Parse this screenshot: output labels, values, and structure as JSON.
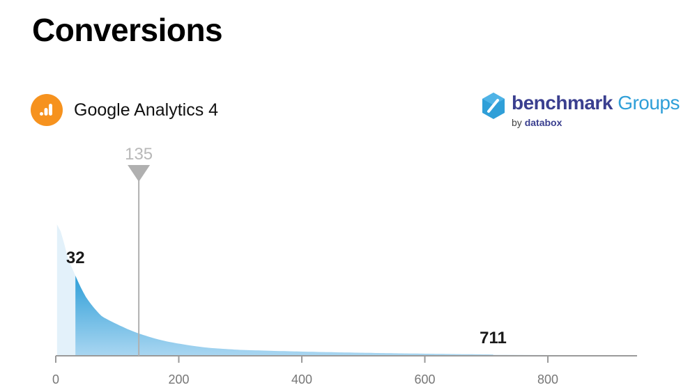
{
  "page": {
    "title": "Conversions"
  },
  "source": {
    "name": "Google Analytics 4",
    "icon": "google-analytics-icon",
    "icon_color": "#f6921e"
  },
  "brand": {
    "name_bold": "benchmark",
    "name_light": "Groups",
    "sub_by": "by",
    "sub_name": "databox",
    "icon": "benchmark-hex-icon"
  },
  "chart_data": {
    "type": "area",
    "xlim": [
      0,
      945
    ],
    "x_ticks": [
      0,
      200,
      400,
      600,
      800
    ],
    "x_tick_labels": [
      "0",
      "200",
      "400",
      "600",
      "800"
    ],
    "x": [
      2,
      10,
      20,
      32,
      50,
      75,
      100,
      135,
      180,
      250,
      300,
      400,
      500,
      600,
      711,
      800,
      945
    ],
    "y": [
      100,
      93,
      74,
      61,
      44,
      30,
      24,
      17,
      11,
      6,
      4.5,
      3.2,
      2.3,
      1.6,
      1.0,
      0.6,
      0.3
    ],
    "ylim": [
      0,
      105
    ],
    "range_low": {
      "value": 32,
      "label": "32"
    },
    "range_high": {
      "value": 711,
      "label": "711"
    },
    "median": {
      "value": 135,
      "label": "135"
    },
    "colors": {
      "outer": "#e3f1fa",
      "inner_top": "#2f9fd8",
      "inner_bottom": "#a9d6f1",
      "marker": "#b0b0b0",
      "axis": "#9a9a9a"
    },
    "grid": false
  }
}
